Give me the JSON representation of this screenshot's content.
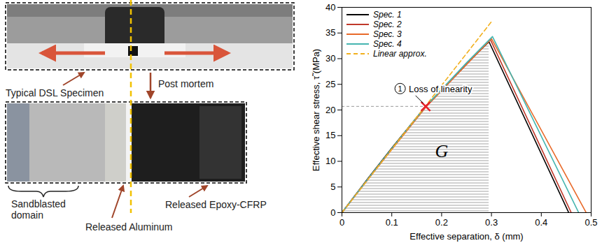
{
  "photo_labels": {
    "specimen": "Typical DSL Specimen",
    "post_mortem": "Post mortem",
    "sandblasted": "Sandblasted domain",
    "aluminum": "Released Aluminum",
    "cfrp": "Released Epoxy-CFRP"
  },
  "chart_data": {
    "type": "line",
    "xlabel": "Effective separation, δ (mm)",
    "ylabel": "Effective shear stress, τ̃ (MPa)",
    "xlim": [
      0,
      0.5
    ],
    "ylim": [
      0,
      40
    ],
    "xticks": [
      0,
      0.1,
      0.2,
      0.3,
      0.4,
      0.5
    ],
    "yticks": [
      0,
      5,
      10,
      15,
      20,
      25,
      30,
      35,
      40
    ],
    "legend": "top-left",
    "series": [
      {
        "name": "Spec. 1",
        "color": "#000000",
        "line_style": "solid",
        "x": [
          0,
          0.05,
          0.1,
          0.168,
          0.25,
          0.295,
          0.455
        ],
        "values": [
          0,
          6.4,
          12.6,
          20.7,
          29.0,
          33.3,
          0
        ]
      },
      {
        "name": "Spec. 2",
        "color": "#c0392b",
        "line_style": "solid",
        "x": [
          0,
          0.05,
          0.1,
          0.168,
          0.25,
          0.298,
          0.46
        ],
        "values": [
          0,
          6.3,
          12.4,
          20.6,
          28.9,
          33.7,
          0
        ]
      },
      {
        "name": "Spec. 3",
        "color": "#e86a2a",
        "line_style": "solid",
        "x": [
          0,
          0.05,
          0.1,
          0.168,
          0.25,
          0.3,
          0.49
        ],
        "values": [
          0,
          6.2,
          12.3,
          20.5,
          28.9,
          33.9,
          0
        ]
      },
      {
        "name": "Spec. 4",
        "color": "#45b5b0",
        "line_style": "solid",
        "x": [
          0,
          0.05,
          0.1,
          0.168,
          0.25,
          0.302,
          0.475
        ],
        "values": [
          0,
          6.3,
          12.5,
          20.7,
          29.2,
          34.3,
          0
        ]
      },
      {
        "name": "Linear approx.",
        "color": "#f2b01e",
        "line_style": "dashed",
        "x": [
          0,
          0.3
        ],
        "values": [
          0,
          37.2
        ]
      }
    ],
    "annotations": [
      {
        "number": "1",
        "text": "Loss of linearity",
        "x": 0.168,
        "y": 20.7,
        "marker": "x",
        "color": "#e8202a"
      },
      {
        "text": "G",
        "x": 0.2,
        "y": 12
      }
    ]
  }
}
